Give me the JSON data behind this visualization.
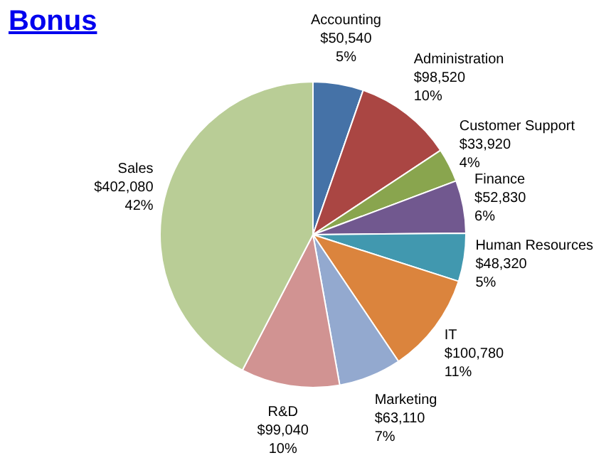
{
  "chart_data": {
    "type": "pie",
    "title": "Bonus",
    "categories": [
      "Accounting",
      "Administration",
      "Customer Support",
      "Finance",
      "Human Resources",
      "IT",
      "Marketing",
      "R&D",
      "Sales"
    ],
    "values": [
      50540,
      98520,
      33920,
      52830,
      48320,
      100780,
      63110,
      99040,
      402080
    ],
    "colors": [
      "#4572a7",
      "#aa4643",
      "#89a54e",
      "#71588f",
      "#4198af",
      "#db843d",
      "#93a9cf",
      "#d19392",
      "#b9cd96"
    ],
    "value_labels": [
      "$50,540\n5%",
      "$98,520\n10%",
      "$33,920\n4%",
      "$52,830\n6%",
      "$48,320\n5%",
      "$100,780\n11%",
      "$63,110\n7%",
      "$99,040\n10%",
      "$402,080\n42%"
    ],
    "legend": false
  }
}
